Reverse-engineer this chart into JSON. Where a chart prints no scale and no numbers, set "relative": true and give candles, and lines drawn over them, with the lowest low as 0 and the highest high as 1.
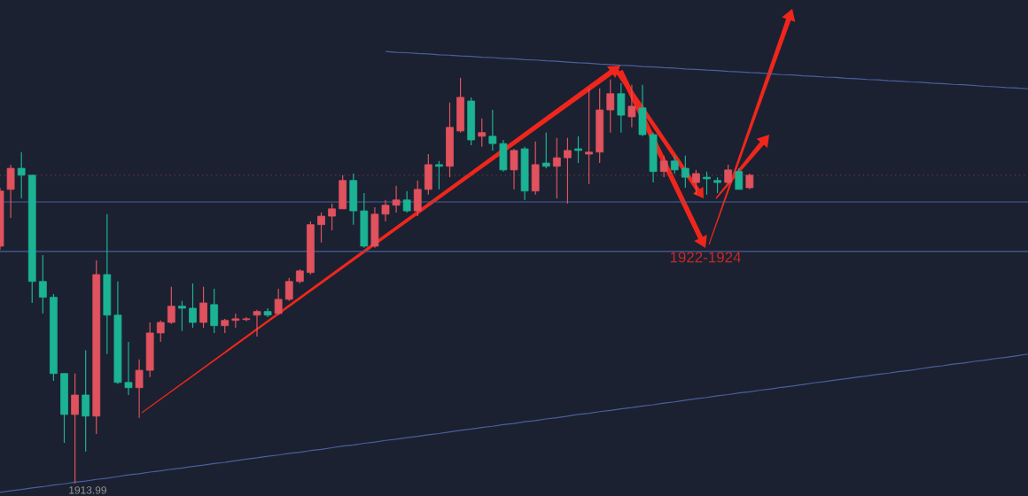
{
  "chart_data": {
    "type": "candlestick",
    "relative": true,
    "categories": [
      null,
      null,
      null,
      null,
      null,
      null,
      null,
      null,
      null,
      null,
      null,
      null,
      null,
      null,
      null,
      null,
      null,
      null,
      null,
      null,
      null,
      null,
      null,
      null,
      null,
      null,
      null,
      null,
      null,
      null,
      null,
      null,
      null,
      null,
      null,
      null,
      null,
      null,
      null,
      null,
      null,
      null,
      null,
      null,
      null,
      null,
      null,
      null,
      null,
      null,
      null,
      null,
      null,
      null,
      null,
      null,
      null,
      null,
      null,
      null,
      null,
      null,
      null,
      null,
      null,
      null,
      null,
      null,
      null,
      null,
      null,
      null,
      null,
      null,
      null,
      null,
      null,
      null,
      null,
      null,
      null,
      null,
      null,
      null,
      null,
      null,
      null,
      null,
      null,
      null,
      null,
      null,
      null,
      null,
      null,
      null,
      null
    ],
    "ohlc": [
      [
        0.585,
        0.729,
        0.576,
        0.721
      ],
      [
        0.725,
        0.786,
        0.655,
        0.777
      ],
      [
        0.777,
        0.817,
        0.703,
        0.76
      ],
      [
        0.76,
        0.76,
        0.445,
        0.498
      ],
      [
        0.498,
        0.563,
        0.419,
        0.459
      ],
      [
        0.459,
        0.467,
        0.253,
        0.271
      ],
      [
        0.271,
        0.271,
        0.1,
        0.17
      ],
      [
        0.17,
        0.271,
        0.0,
        0.218
      ],
      [
        0.218,
        0.328,
        0.079,
        0.166
      ],
      [
        0.166,
        0.55,
        0.122,
        0.515
      ],
      [
        0.515,
        0.664,
        0.319,
        0.415
      ],
      [
        0.415,
        0.498,
        0.245,
        0.249
      ],
      [
        0.249,
        0.349,
        0.218,
        0.236
      ],
      [
        0.236,
        0.306,
        0.162,
        0.279
      ],
      [
        0.279,
        0.397,
        0.262,
        0.371
      ],
      [
        0.371,
        0.402,
        0.349,
        0.397
      ],
      [
        0.397,
        0.485,
        0.393,
        0.437
      ],
      [
        0.437,
        0.45,
        0.376,
        0.432
      ],
      [
        0.432,
        0.493,
        0.384,
        0.397
      ],
      [
        0.397,
        0.485,
        0.384,
        0.445
      ],
      [
        0.441,
        0.48,
        0.371,
        0.389
      ],
      [
        0.389,
        0.406,
        0.371,
        0.402
      ],
      [
        0.402,
        0.419,
        0.384,
        0.406
      ],
      [
        0.404,
        0.41,
        0.4,
        0.406
      ],
      [
        0.415,
        0.428,
        0.362,
        0.424
      ],
      [
        0.424,
        0.432,
        0.41,
        0.415
      ],
      [
        0.419,
        0.48,
        0.415,
        0.454
      ],
      [
        0.454,
        0.507,
        0.45,
        0.498
      ],
      [
        0.498,
        0.528,
        0.493,
        0.524
      ],
      [
        0.52,
        0.646,
        0.515,
        0.638
      ],
      [
        0.638,
        0.668,
        0.594,
        0.659
      ],
      [
        0.659,
        0.69,
        0.624,
        0.677
      ],
      [
        0.677,
        0.76,
        0.677,
        0.747
      ],
      [
        0.747,
        0.764,
        0.638,
        0.672
      ],
      [
        0.672,
        0.716,
        0.581,
        0.585
      ],
      [
        0.585,
        0.681,
        0.581,
        0.664
      ],
      [
        0.664,
        0.699,
        0.646,
        0.686
      ],
      [
        0.686,
        0.734,
        0.668,
        0.699
      ],
      [
        0.699,
        0.721,
        0.668,
        0.672
      ],
      [
        0.672,
        0.747,
        0.659,
        0.725
      ],
      [
        0.725,
        0.812,
        0.712,
        0.786
      ],
      [
        0.786,
        0.795,
        0.725,
        0.782
      ],
      [
        0.782,
        0.939,
        0.755,
        0.878
      ],
      [
        0.869,
        1.0,
        0.865,
        0.952
      ],
      [
        0.943,
        0.952,
        0.834,
        0.847
      ],
      [
        0.856,
        0.9,
        0.83,
        0.865
      ],
      [
        0.856,
        0.921,
        0.821,
        0.838
      ],
      [
        0.838,
        0.847,
        0.769,
        0.773
      ],
      [
        0.773,
        0.825,
        0.725,
        0.821
      ],
      [
        0.825,
        0.83,
        0.699,
        0.721
      ],
      [
        0.721,
        0.843,
        0.712,
        0.786
      ],
      [
        0.79,
        0.865,
        0.777,
        0.782
      ],
      [
        0.782,
        0.852,
        0.703,
        0.803
      ],
      [
        0.803,
        0.852,
        0.69,
        0.821
      ],
      [
        0.825,
        0.856,
        0.79,
        0.821
      ],
      [
        0.812,
        0.974,
        0.738,
        0.817
      ],
      [
        0.817,
        0.974,
        0.79,
        0.921
      ],
      [
        0.921,
        0.996,
        0.865,
        0.961
      ],
      [
        0.961,
        0.987,
        0.865,
        0.908
      ],
      [
        0.904,
        0.983,
        0.878,
        0.93
      ],
      [
        0.926,
        0.983,
        0.856,
        0.86
      ],
      [
        0.86,
        0.865,
        0.742,
        0.769
      ],
      [
        0.769,
        0.808,
        0.755,
        0.795
      ],
      [
        0.795,
        0.808,
        0.764,
        0.773
      ],
      [
        0.777,
        0.808,
        0.729,
        0.755
      ],
      [
        0.742,
        0.773,
        0.712,
        0.764
      ],
      [
        0.755,
        0.769,
        0.712,
        0.751
      ],
      [
        0.747,
        0.755,
        0.716,
        0.742
      ],
      [
        0.742,
        0.786,
        0.738,
        0.773
      ],
      [
        0.769,
        0.777,
        0.725,
        0.725
      ],
      [
        0.729,
        0.764,
        0.725,
        0.76
      ],
      null,
      null,
      null,
      null,
      null,
      null,
      null,
      null,
      null,
      null,
      null,
      null,
      null,
      null,
      null,
      null,
      null,
      null,
      null,
      null,
      null,
      null,
      null,
      null,
      null,
      null
    ],
    "colors": [
      "#e0525e",
      "#e0525e",
      "#1bb394",
      "#1bb394",
      "#1bb394",
      "#1bb394",
      "#1bb394",
      "#e0525e",
      "#1bb394",
      "#e0525e",
      "#1bb394",
      "#1bb394",
      "#1bb394",
      "#e0525e",
      "#e0525e",
      "#e0525e",
      "#e0525e",
      "#1bb394",
      "#1bb394",
      "#e0525e",
      "#1bb394",
      "#e0525e",
      "#e0525e",
      "#e0525e",
      "#e0525e",
      "#1bb394",
      "#e0525e",
      "#e0525e",
      "#e0525e",
      "#e0525e",
      "#e0525e",
      "#e0525e",
      "#e0525e",
      "#1bb394",
      "#1bb394",
      "#e0525e",
      "#e0525e",
      "#e0525e",
      "#1bb394",
      "#e0525e",
      "#e0525e",
      "#1bb394",
      "#e0525e",
      "#e0525e",
      "#1bb394",
      "#e0525e",
      "#1bb394",
      "#1bb394",
      "#e0525e",
      "#1bb394",
      "#e0525e",
      "#1bb394",
      "#e0525e",
      "#e0525e",
      "#1bb394",
      "#e0525e",
      "#e0525e",
      "#e0525e",
      "#1bb394",
      "#e0525e",
      "#1bb394",
      "#1bb394",
      "#e0525e",
      "#1bb394",
      "#1bb394",
      "#e0525e",
      "#1bb394",
      "#1bb394",
      "#e0525e",
      "#1bb394",
      "#e0525e",
      null,
      null,
      null,
      null,
      null,
      null,
      null,
      null,
      null,
      null,
      null,
      null,
      null,
      null,
      null,
      null,
      null,
      null,
      null,
      null,
      null,
      null,
      null,
      null,
      null,
      null
    ],
    "series": [
      {
        "type": "line",
        "color": "#4a5f9e",
        "values": [
          null,
          null,
          null,
          null,
          null,
          null,
          null,
          null,
          null,
          null,
          null,
          null,
          null,
          null,
          null,
          null,
          null,
          null,
          null,
          null,
          null,
          null,
          null,
          null,
          null,
          null,
          null,
          null,
          null,
          null,
          null,
          null,
          null,
          null,
          null,
          null,
          1.065,
          1.063,
          1.062,
          1.06,
          1.059,
          1.057,
          1.056,
          1.054,
          1.053,
          1.051,
          1.05,
          1.048,
          1.047,
          1.045,
          1.044,
          1.042,
          1.041,
          1.039,
          1.037,
          1.036,
          1.034,
          1.033,
          1.031,
          1.03,
          1.028,
          1.027,
          1.025,
          1.024,
          1.022,
          1.021,
          1.019,
          1.018,
          1.016,
          1.015,
          1.013,
          1.012,
          1.01,
          1.008,
          1.007,
          1.005,
          1.004,
          1.002,
          1.001,
          0.999,
          0.998,
          0.996,
          0.995,
          0.993,
          0.992,
          0.99,
          0.989,
          0.987,
          0.986,
          0.984,
          0.983,
          0.981,
          0.979,
          0.978,
          0.976,
          0.975,
          0.973
        ]
      },
      {
        "type": "line",
        "color": "#4a5f9e",
        "values": [
          -0.022,
          -0.018,
          -0.015,
          -0.011,
          -0.008,
          -0.004,
          -0.001,
          0.003,
          0.006,
          0.01,
          0.013,
          0.017,
          0.021,
          0.024,
          0.028,
          0.031,
          0.035,
          0.038,
          0.042,
          0.045,
          0.049,
          0.052,
          0.056,
          0.06,
          0.063,
          0.067,
          0.07,
          0.074,
          0.077,
          0.081,
          0.084,
          0.088,
          0.092,
          0.095,
          0.099,
          0.102,
          0.106,
          0.109,
          0.113,
          0.116,
          0.12,
          0.123,
          0.127,
          0.131,
          0.134,
          0.138,
          0.141,
          0.145,
          0.148,
          0.152,
          0.155,
          0.159,
          0.162,
          0.166,
          0.17,
          0.173,
          0.177,
          0.18,
          0.184,
          0.187,
          0.191,
          0.194,
          0.198,
          0.201,
          0.205,
          0.209,
          0.212,
          0.216,
          0.219,
          0.223,
          0.226,
          0.23,
          0.233,
          0.237,
          0.24,
          0.244,
          0.248,
          0.251,
          0.255,
          0.258,
          0.262,
          0.265,
          0.269,
          0.272,
          0.276,
          0.279,
          0.283,
          0.287,
          0.29,
          0.294,
          0.297,
          0.301,
          0.304,
          0.308,
          0.311,
          0.315,
          0.319
        ]
      }
    ],
    "ref_lines": [
      {
        "axis": "y",
        "value": 0.694,
        "color": "#4a5f9e"
      },
      {
        "axis": "y",
        "value": 0.572,
        "color": "#4a5f9e"
      },
      {
        "axis": "y",
        "value": 0.76,
        "color": "#6e3a44",
        "line_style": "dotted"
      }
    ],
    "annotations": [
      "1913.99",
      "1922-1924"
    ]
  }
}
